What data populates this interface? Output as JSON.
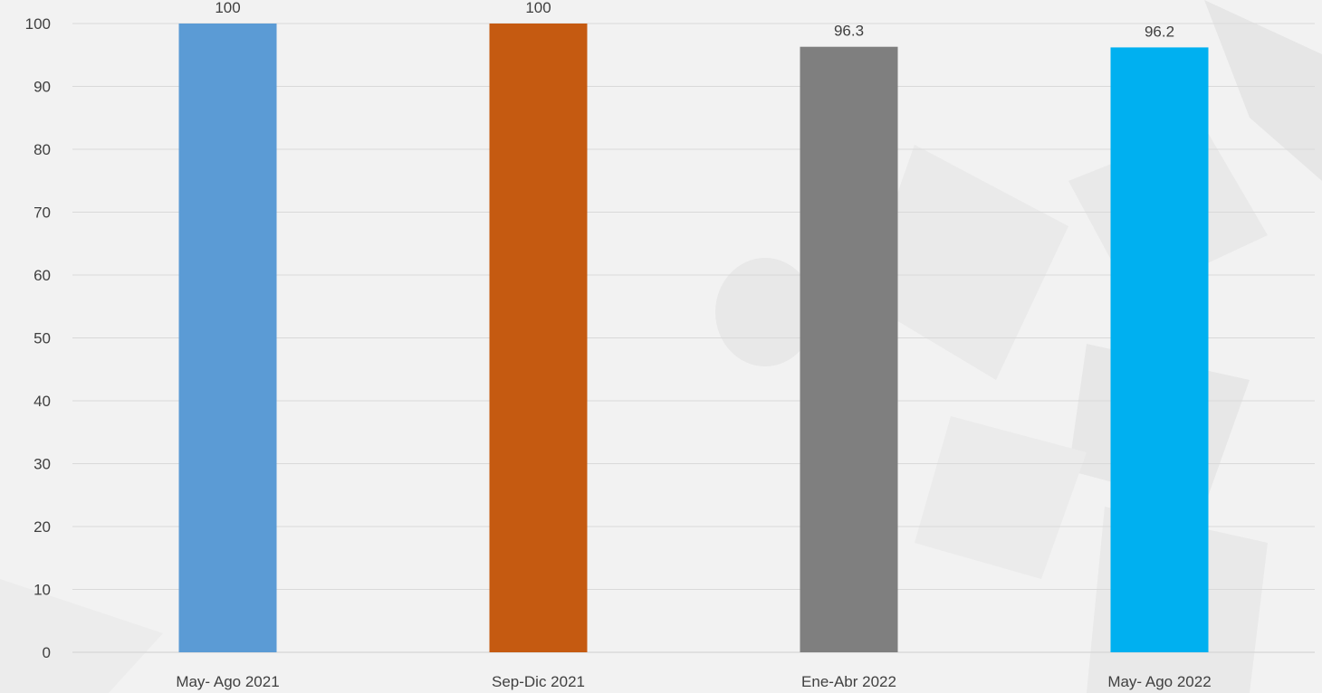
{
  "chart_data": {
    "type": "bar",
    "categories": [
      "May- Ago 2021",
      "Sep-Dic 2021",
      "Ene-Abr 2022",
      "May- Ago 2022"
    ],
    "values": [
      100,
      100,
      96.3,
      96.2
    ],
    "value_labels": [
      "100",
      "100",
      "96.3",
      "96.2"
    ],
    "bar_colors": [
      "#5b9bd5",
      "#c55a11",
      "#7f7f7f",
      "#00b0f0"
    ],
    "title": "",
    "xlabel": "",
    "ylabel": "",
    "ylim": [
      0,
      100
    ],
    "yticks": [
      0,
      10,
      20,
      30,
      40,
      50,
      60,
      70,
      80,
      90,
      100
    ],
    "grid": true,
    "legend": "none"
  },
  "colors": {
    "gridline": "#d9d9d9",
    "axis_text": "#404040",
    "background": "#f2f2f2",
    "watermark": "#e6e6e6"
  }
}
